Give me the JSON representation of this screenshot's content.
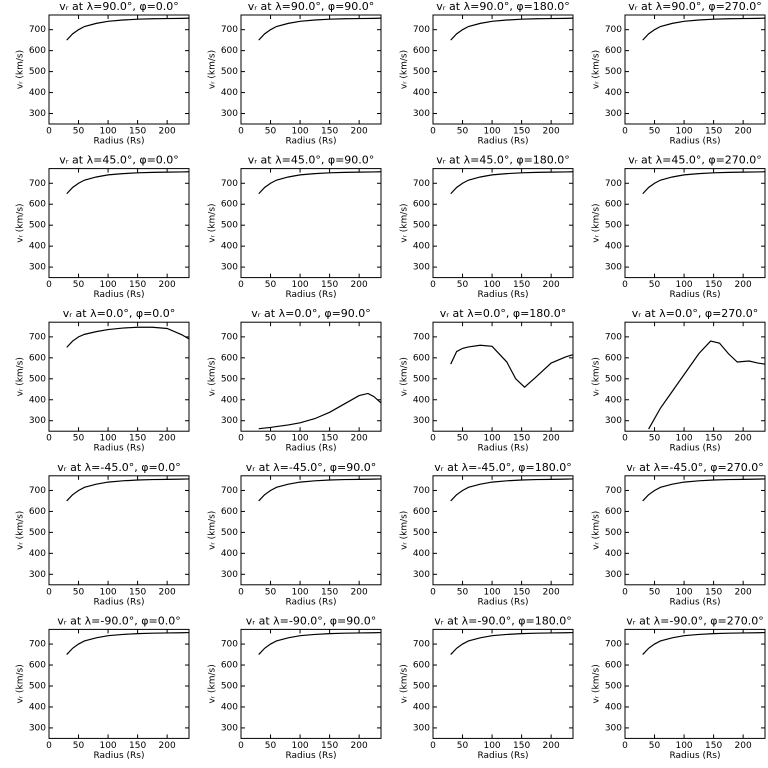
{
  "chart_data": [
    {
      "type": "line",
      "title": "vᵣ at λ=90.0°, φ=0.0°",
      "xlabel": "Radius (Rs)",
      "ylabel": "vᵣ (km/s)",
      "x": [
        30,
        40,
        50,
        60,
        80,
        100,
        125,
        150,
        175,
        200,
        225,
        237
      ],
      "values": [
        650,
        680,
        700,
        715,
        730,
        740,
        746,
        750,
        752,
        753,
        754,
        755
      ],
      "xlim": [
        0,
        237
      ],
      "ylim": [
        250,
        770
      ],
      "xticks": [
        0,
        50,
        100,
        150,
        200
      ],
      "yticks": [
        300,
        400,
        500,
        600,
        700
      ],
      "color": "#000000"
    },
    {
      "type": "line",
      "title": "vᵣ at λ=90.0°, φ=90.0°",
      "xlabel": "Radius (Rs)",
      "ylabel": "vᵣ (km/s)",
      "x": [
        30,
        40,
        50,
        60,
        80,
        100,
        125,
        150,
        175,
        200,
        225,
        237
      ],
      "values": [
        650,
        680,
        700,
        715,
        730,
        740,
        746,
        750,
        752,
        753,
        754,
        755
      ],
      "xlim": [
        0,
        237
      ],
      "ylim": [
        250,
        770
      ],
      "xticks": [
        0,
        50,
        100,
        150,
        200
      ],
      "yticks": [
        300,
        400,
        500,
        600,
        700
      ],
      "color": "#000000"
    },
    {
      "type": "line",
      "title": "vᵣ at λ=90.0°, φ=180.0°",
      "xlabel": "Radius (Rs)",
      "ylabel": "vᵣ (km/s)",
      "x": [
        30,
        40,
        50,
        60,
        80,
        100,
        125,
        150,
        175,
        200,
        225,
        237
      ],
      "values": [
        650,
        680,
        700,
        715,
        730,
        740,
        746,
        750,
        752,
        753,
        754,
        755
      ],
      "xlim": [
        0,
        237
      ],
      "ylim": [
        250,
        770
      ],
      "xticks": [
        0,
        50,
        100,
        150,
        200
      ],
      "yticks": [
        300,
        400,
        500,
        600,
        700
      ],
      "color": "#000000"
    },
    {
      "type": "line",
      "title": "vᵣ at λ=90.0°, φ=270.0°",
      "xlabel": "Radius (Rs)",
      "ylabel": "vᵣ (km/s)",
      "x": [
        30,
        40,
        50,
        60,
        80,
        100,
        125,
        150,
        175,
        200,
        225,
        237
      ],
      "values": [
        650,
        680,
        700,
        715,
        730,
        740,
        746,
        750,
        752,
        753,
        754,
        755
      ],
      "xlim": [
        0,
        237
      ],
      "ylim": [
        250,
        770
      ],
      "xticks": [
        0,
        50,
        100,
        150,
        200
      ],
      "yticks": [
        300,
        400,
        500,
        600,
        700
      ],
      "color": "#000000"
    },
    {
      "type": "line",
      "title": "vᵣ at λ=45.0°, φ=0.0°",
      "xlabel": "Radius (Rs)",
      "ylabel": "vᵣ (km/s)",
      "x": [
        30,
        40,
        50,
        60,
        80,
        100,
        125,
        150,
        175,
        200,
        225,
        237
      ],
      "values": [
        650,
        680,
        700,
        715,
        730,
        740,
        746,
        750,
        752,
        753,
        754,
        755
      ],
      "xlim": [
        0,
        237
      ],
      "ylim": [
        250,
        770
      ],
      "xticks": [
        0,
        50,
        100,
        150,
        200
      ],
      "yticks": [
        300,
        400,
        500,
        600,
        700
      ],
      "color": "#000000"
    },
    {
      "type": "line",
      "title": "vᵣ at λ=45.0°, φ=90.0°",
      "xlabel": "Radius (Rs)",
      "ylabel": "vᵣ (km/s)",
      "x": [
        30,
        40,
        50,
        60,
        80,
        100,
        125,
        150,
        175,
        200,
        225,
        237
      ],
      "values": [
        650,
        680,
        700,
        715,
        730,
        740,
        746,
        750,
        752,
        753,
        754,
        755
      ],
      "xlim": [
        0,
        237
      ],
      "ylim": [
        250,
        770
      ],
      "xticks": [
        0,
        50,
        100,
        150,
        200
      ],
      "yticks": [
        300,
        400,
        500,
        600,
        700
      ],
      "color": "#000000"
    },
    {
      "type": "line",
      "title": "vᵣ at λ=45.0°, φ=180.0°",
      "xlabel": "Radius (Rs)",
      "ylabel": "vᵣ (km/s)",
      "x": [
        30,
        40,
        50,
        60,
        80,
        100,
        125,
        150,
        175,
        200,
        225,
        237
      ],
      "values": [
        650,
        680,
        700,
        715,
        730,
        740,
        746,
        750,
        752,
        753,
        754,
        755
      ],
      "xlim": [
        0,
        237
      ],
      "ylim": [
        250,
        770
      ],
      "xticks": [
        0,
        50,
        100,
        150,
        200
      ],
      "yticks": [
        300,
        400,
        500,
        600,
        700
      ],
      "color": "#000000"
    },
    {
      "type": "line",
      "title": "vᵣ at λ=45.0°, φ=270.0°",
      "xlabel": "Radius (Rs)",
      "ylabel": "vᵣ (km/s)",
      "x": [
        30,
        40,
        50,
        60,
        80,
        100,
        125,
        150,
        175,
        200,
        225,
        237
      ],
      "values": [
        650,
        680,
        700,
        715,
        730,
        740,
        746,
        750,
        752,
        753,
        754,
        755
      ],
      "xlim": [
        0,
        237
      ],
      "ylim": [
        250,
        770
      ],
      "xticks": [
        0,
        50,
        100,
        150,
        200
      ],
      "yticks": [
        300,
        400,
        500,
        600,
        700
      ],
      "color": "#000000"
    },
    {
      "type": "line",
      "title": "vᵣ at λ=0.0°, φ=0.0°",
      "xlabel": "Radius (Rs)",
      "ylabel": "vᵣ (km/s)",
      "x": [
        30,
        40,
        50,
        60,
        80,
        100,
        125,
        150,
        175,
        200,
        225,
        237
      ],
      "values": [
        650,
        680,
        700,
        712,
        725,
        735,
        742,
        746,
        746,
        740,
        710,
        690
      ],
      "xlim": [
        0,
        237
      ],
      "ylim": [
        250,
        770
      ],
      "xticks": [
        0,
        50,
        100,
        150,
        200
      ],
      "yticks": [
        300,
        400,
        500,
        600,
        700
      ],
      "color": "#000000"
    },
    {
      "type": "line",
      "title": "vᵣ at λ=0.0°, φ=90.0°",
      "xlabel": "Radius (Rs)",
      "ylabel": "vᵣ (km/s)",
      "x": [
        30,
        40,
        50,
        60,
        80,
        100,
        125,
        150,
        175,
        200,
        215,
        225,
        237
      ],
      "values": [
        262,
        265,
        268,
        272,
        280,
        290,
        310,
        340,
        380,
        420,
        430,
        415,
        385
      ],
      "xlim": [
        0,
        237
      ],
      "ylim": [
        250,
        770
      ],
      "xticks": [
        0,
        50,
        100,
        150,
        200
      ],
      "yticks": [
        300,
        400,
        500,
        600,
        700
      ],
      "color": "#000000"
    },
    {
      "type": "line",
      "title": "vᵣ at λ=0.0°, φ=180.0°",
      "xlabel": "Radius (Rs)",
      "ylabel": "vᵣ (km/s)",
      "x": [
        30,
        40,
        50,
        60,
        80,
        100,
        125,
        140,
        155,
        175,
        200,
        225,
        237
      ],
      "values": [
        570,
        630,
        645,
        652,
        660,
        655,
        580,
        500,
        460,
        510,
        575,
        605,
        615
      ],
      "xlim": [
        0,
        237
      ],
      "ylim": [
        250,
        770
      ],
      "xticks": [
        0,
        50,
        100,
        150,
        200
      ],
      "yticks": [
        300,
        400,
        500,
        600,
        700
      ],
      "color": "#000000"
    },
    {
      "type": "line",
      "title": "vᵣ at λ=0.0°, φ=270.0°",
      "xlabel": "Radius (Rs)",
      "ylabel": "vᵣ (km/s)",
      "x": [
        40,
        60,
        80,
        100,
        125,
        145,
        160,
        175,
        190,
        210,
        225,
        237
      ],
      "values": [
        260,
        360,
        440,
        520,
        620,
        680,
        670,
        620,
        580,
        585,
        575,
        570
      ],
      "xlim": [
        0,
        237
      ],
      "ylim": [
        250,
        770
      ],
      "xticks": [
        0,
        50,
        100,
        150,
        200
      ],
      "yticks": [
        300,
        400,
        500,
        600,
        700
      ],
      "color": "#000000"
    },
    {
      "type": "line",
      "title": "vᵣ at λ=-45.0°, φ=0.0°",
      "xlabel": "Radius (Rs)",
      "ylabel": "vᵣ (km/s)",
      "x": [
        30,
        40,
        50,
        60,
        80,
        100,
        125,
        150,
        175,
        200,
        225,
        237
      ],
      "values": [
        650,
        680,
        700,
        715,
        730,
        740,
        746,
        750,
        752,
        753,
        754,
        755
      ],
      "xlim": [
        0,
        237
      ],
      "ylim": [
        250,
        770
      ],
      "xticks": [
        0,
        50,
        100,
        150,
        200
      ],
      "yticks": [
        300,
        400,
        500,
        600,
        700
      ],
      "color": "#000000"
    },
    {
      "type": "line",
      "title": "vᵣ at λ=-45.0°, φ=90.0°",
      "xlabel": "Radius (Rs)",
      "ylabel": "vᵣ (km/s)",
      "x": [
        30,
        40,
        50,
        60,
        80,
        100,
        125,
        150,
        175,
        200,
        225,
        237
      ],
      "values": [
        650,
        680,
        700,
        715,
        730,
        740,
        746,
        750,
        752,
        753,
        754,
        755
      ],
      "xlim": [
        0,
        237
      ],
      "ylim": [
        250,
        770
      ],
      "xticks": [
        0,
        50,
        100,
        150,
        200
      ],
      "yticks": [
        300,
        400,
        500,
        600,
        700
      ],
      "color": "#000000"
    },
    {
      "type": "line",
      "title": "vᵣ at λ=-45.0°, φ=180.0°",
      "xlabel": "Radius (Rs)",
      "ylabel": "vᵣ (km/s)",
      "x": [
        30,
        40,
        50,
        60,
        80,
        100,
        125,
        150,
        175,
        200,
        225,
        237
      ],
      "values": [
        650,
        680,
        700,
        715,
        730,
        740,
        746,
        750,
        752,
        753,
        754,
        755
      ],
      "xlim": [
        0,
        237
      ],
      "ylim": [
        250,
        770
      ],
      "xticks": [
        0,
        50,
        100,
        150,
        200
      ],
      "yticks": [
        300,
        400,
        500,
        600,
        700
      ],
      "color": "#000000"
    },
    {
      "type": "line",
      "title": "vᵣ at λ=-45.0°, φ=270.0°",
      "xlabel": "Radius (Rs)",
      "ylabel": "vᵣ (km/s)",
      "x": [
        30,
        40,
        50,
        60,
        80,
        100,
        125,
        150,
        175,
        200,
        225,
        237
      ],
      "values": [
        650,
        680,
        700,
        715,
        730,
        740,
        746,
        750,
        752,
        753,
        754,
        755
      ],
      "xlim": [
        0,
        237
      ],
      "ylim": [
        250,
        770
      ],
      "xticks": [
        0,
        50,
        100,
        150,
        200
      ],
      "yticks": [
        300,
        400,
        500,
        600,
        700
      ],
      "color": "#000000"
    },
    {
      "type": "line",
      "title": "vᵣ at λ=-90.0°, φ=0.0°",
      "xlabel": "Radius (Rs)",
      "ylabel": "vᵣ (km/s)",
      "x": [
        30,
        40,
        50,
        60,
        80,
        100,
        125,
        150,
        175,
        200,
        225,
        237
      ],
      "values": [
        650,
        680,
        700,
        715,
        730,
        740,
        746,
        750,
        752,
        753,
        754,
        755
      ],
      "xlim": [
        0,
        237
      ],
      "ylim": [
        250,
        770
      ],
      "xticks": [
        0,
        50,
        100,
        150,
        200
      ],
      "yticks": [
        300,
        400,
        500,
        600,
        700
      ],
      "color": "#000000"
    },
    {
      "type": "line",
      "title": "vᵣ at λ=-90.0°, φ=90.0°",
      "xlabel": "Radius (Rs)",
      "ylabel": "vᵣ (km/s)",
      "x": [
        30,
        40,
        50,
        60,
        80,
        100,
        125,
        150,
        175,
        200,
        225,
        237
      ],
      "values": [
        650,
        680,
        700,
        715,
        730,
        740,
        746,
        750,
        752,
        753,
        754,
        755
      ],
      "xlim": [
        0,
        237
      ],
      "ylim": [
        250,
        770
      ],
      "xticks": [
        0,
        50,
        100,
        150,
        200
      ],
      "yticks": [
        300,
        400,
        500,
        600,
        700
      ],
      "color": "#000000"
    },
    {
      "type": "line",
      "title": "vᵣ at λ=-90.0°, φ=180.0°",
      "xlabel": "Radius (Rs)",
      "ylabel": "vᵣ (km/s)",
      "x": [
        30,
        40,
        50,
        60,
        80,
        100,
        125,
        150,
        175,
        200,
        225,
        237
      ],
      "values": [
        650,
        680,
        700,
        715,
        730,
        740,
        746,
        750,
        752,
        753,
        754,
        755
      ],
      "xlim": [
        0,
        237
      ],
      "ylim": [
        250,
        770
      ],
      "xticks": [
        0,
        50,
        100,
        150,
        200
      ],
      "yticks": [
        300,
        400,
        500,
        600,
        700
      ],
      "color": "#000000"
    },
    {
      "type": "line",
      "title": "vᵣ at λ=-90.0°, φ=270.0°",
      "xlabel": "Radius (Rs)",
      "ylabel": "vᵣ (km/s)",
      "x": [
        30,
        40,
        50,
        60,
        80,
        100,
        125,
        150,
        175,
        200,
        225,
        237
      ],
      "values": [
        650,
        680,
        700,
        715,
        730,
        740,
        746,
        750,
        752,
        753,
        754,
        755
      ],
      "xlim": [
        0,
        237
      ],
      "ylim": [
        250,
        770
      ],
      "xticks": [
        0,
        50,
        100,
        150,
        200
      ],
      "yticks": [
        300,
        400,
        500,
        600,
        700
      ],
      "color": "#000000"
    }
  ]
}
